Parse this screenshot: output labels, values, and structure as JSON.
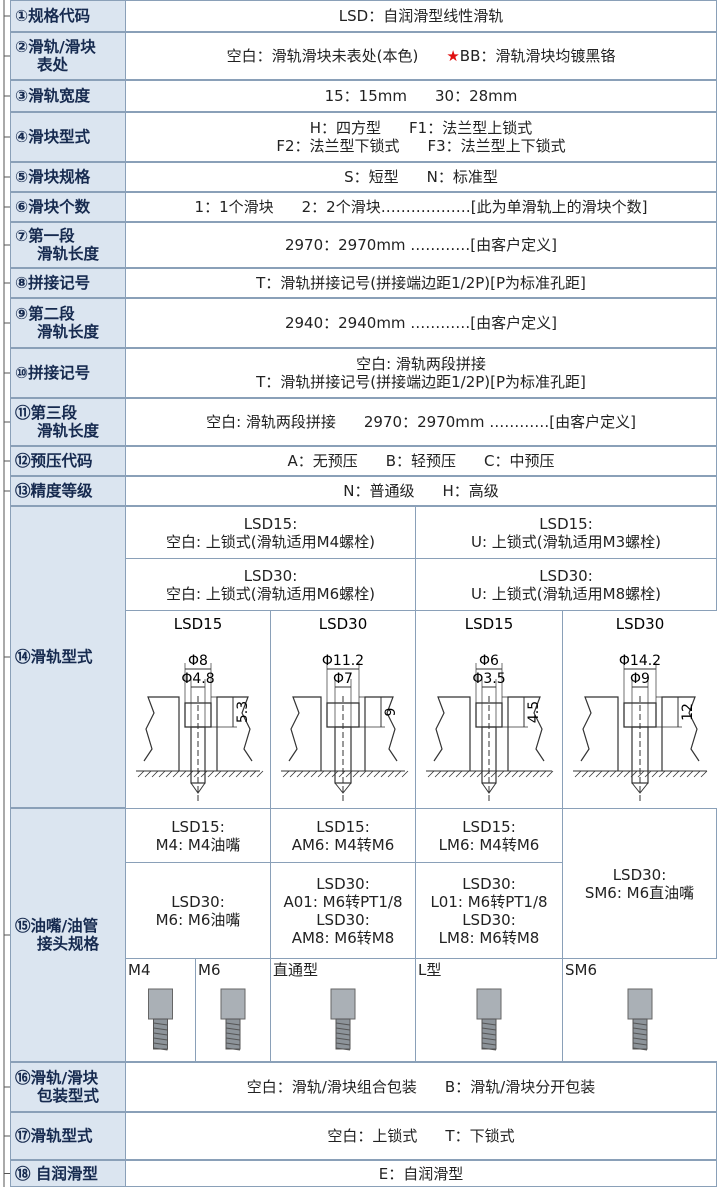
{
  "rows": [
    {
      "label": [
        "①规格代码"
      ],
      "lines": [
        [
          "LSD：自润滑型线性滑轨"
        ]
      ]
    },
    {
      "label": [
        "②滑轨/滑块",
        "表处"
      ],
      "lines": [
        [
          "空白：滑轨滑块未表处(本色)",
          "BB：滑轨滑块均镀黑铬"
        ]
      ],
      "mark": "★"
    },
    {
      "label": [
        "③滑轨宽度"
      ],
      "lines": [
        [
          "15：15mm",
          "30：28mm"
        ]
      ]
    },
    {
      "label": [
        "④滑块型式"
      ],
      "lines": [
        [
          "H：四方型",
          "F1：法兰型上锁式"
        ],
        [
          "F2：法兰型下锁式",
          "F3：法兰型上下锁式"
        ]
      ]
    },
    {
      "label": [
        "⑤滑块规格"
      ],
      "lines": [
        [
          "S：短型",
          "N：标准型"
        ]
      ]
    },
    {
      "label": [
        "⑥滑块个数"
      ],
      "lines": [
        [
          "1：1个滑块",
          "2：2个滑块………………[此为单滑轨上的滑块个数]"
        ]
      ]
    },
    {
      "label": [
        "⑦第一段",
        "滑轨长度"
      ],
      "lines": [
        [
          "2970：2970mm …………[由客户定义]"
        ]
      ]
    },
    {
      "label": [
        "⑧拼接记号"
      ],
      "lines": [
        [
          "T：滑轨拼接记号(拼接端边距1/2P)[P为标准孔距]"
        ]
      ]
    },
    {
      "label": [
        "⑨第二段",
        "滑轨长度"
      ],
      "lines": [
        [
          "2940：2940mm …………[由客户定义]"
        ]
      ]
    },
    {
      "label": [
        "⑩拼接记号"
      ],
      "lines": [
        [
          "空白: 滑轨两段拼接"
        ],
        [
          "T：滑轨拼接记号(拼接端边距1/2P)[P为标准孔距]"
        ]
      ]
    },
    {
      "label": [
        "⑪第三段",
        "滑轨长度"
      ],
      "lines": [
        [
          "空白: 滑轨两段拼接",
          "2970：2970mm …………[由客户定义]"
        ]
      ]
    },
    {
      "label": [
        "⑫预压代码"
      ],
      "lines": [
        [
          "A：无预压",
          "B：轻预压",
          "C：中预压"
        ]
      ]
    },
    {
      "label": [
        "⑬精度等级"
      ],
      "lines": [
        [
          "N：普通级",
          "H：高级"
        ]
      ]
    },
    {
      "label": [
        "⑭滑轨型式"
      ]
    },
    {
      "label": [
        "⑮油嘴/油管",
        "接头规格"
      ]
    },
    {
      "label": [
        "⑯滑轨/滑块",
        "包装型式"
      ],
      "lines": [
        [
          "空白：滑轨/滑块组合包装",
          "B：滑轨/滑块分开包装"
        ]
      ]
    },
    {
      "label": [
        "⑰滑轨型式"
      ],
      "lines": [
        [
          "空白：上锁式",
          "T：下锁式"
        ]
      ]
    },
    {
      "label": [
        "⑱ 自润滑型"
      ],
      "lines": [
        [
          "E：自润滑型"
        ]
      ]
    }
  ],
  "rail_type": {
    "options": [
      {
        "lines": [
          "LSD15:",
          "空白: 上锁式(滑轨适用M4螺栓)"
        ]
      },
      {
        "lines": [
          "LSD15:",
          "U: 上锁式(滑轨适用M3螺栓)"
        ]
      },
      {
        "lines": [
          "LSD30:",
          "空白: 上锁式(滑轨适用M6螺栓)"
        ]
      },
      {
        "lines": [
          "LSD30:",
          "U: 上锁式(滑轨适用M8螺栓)"
        ]
      }
    ],
    "drawings": [
      {
        "model": "LSD15",
        "outer": "Φ8",
        "inner": "Φ4.8",
        "depth": "5.3"
      },
      {
        "model": "LSD30",
        "outer": "Φ11.2",
        "inner": "Φ7",
        "depth": "9"
      },
      {
        "model": "LSD15",
        "outer": "Φ6",
        "inner": "Φ3.5",
        "depth": "4.5"
      },
      {
        "model": "LSD30",
        "outer": "Φ14.2",
        "inner": "Φ9",
        "depth": "12"
      }
    ]
  },
  "fittings": {
    "cells": [
      {
        "lines": [
          "LSD15:",
          "M4: M4油嘴"
        ]
      },
      {
        "lines": [
          "LSD15:",
          "AM6: M4转M6"
        ]
      },
      {
        "lines": [
          "LSD15:",
          "LM6: M4转M6"
        ]
      },
      {
        "lines": [
          "LSD30:",
          "SM6: M6直油嘴"
        ]
      },
      {
        "lines": [
          "LSD30:",
          "M6: M6油嘴"
        ]
      },
      {
        "lines": [
          "LSD30:",
          "A01: M6转PT1/8",
          "LSD30:",
          "AM8: M6转M8"
        ]
      },
      {
        "lines": [
          "LSD30:",
          "L01: M6转PT1/8",
          "LSD30:",
          "LM8: M6转M8"
        ]
      }
    ],
    "photos": [
      "M4",
      "M6",
      "直通型",
      "L型",
      "SM6"
    ]
  }
}
